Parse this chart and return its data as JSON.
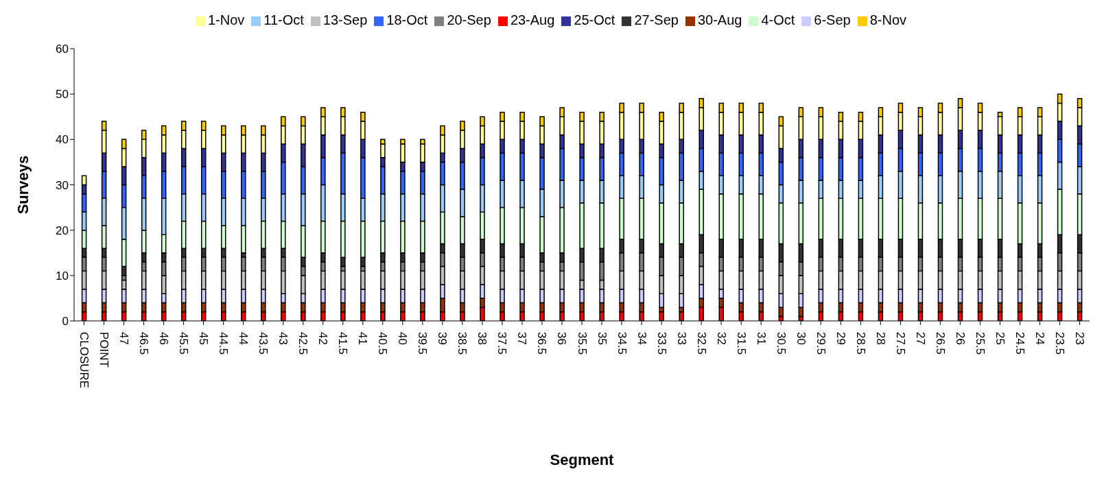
{
  "chart_data": {
    "type": "bar",
    "stacked": true,
    "xlabel": "Segment",
    "ylabel": "Surveys",
    "ylim": [
      0,
      60
    ],
    "yticks": [
      0,
      10,
      20,
      30,
      40,
      50,
      60
    ],
    "grid": false,
    "legend": "top",
    "categories": [
      "CLOSURE",
      "POINT",
      "47",
      "46.5",
      "46",
      "45.5",
      "45",
      "44.5",
      "44",
      "43.5",
      "43",
      "42.5",
      "42",
      "41.5",
      "41",
      "40.5",
      "40",
      "39.5",
      "39",
      "38.5",
      "38",
      "37.5",
      "37",
      "36.5",
      "36",
      "35.5",
      "35",
      "34.5",
      "34",
      "33.5",
      "33",
      "32.5",
      "32",
      "31.5",
      "31",
      "30.5",
      "30",
      "29.5",
      "29",
      "28.5",
      "28",
      "27.5",
      "27",
      "26.5",
      "26",
      "25.5",
      "25",
      "24.5",
      "24",
      "23.5",
      "23"
    ],
    "series": [
      {
        "name": "23-Aug",
        "color": "#ff0000",
        "values": [
          2,
          2,
          2,
          2,
          2,
          2,
          2,
          2,
          2,
          2,
          2,
          2,
          2,
          2,
          2,
          2,
          2,
          2,
          2,
          2,
          3,
          2,
          2,
          2,
          2,
          2,
          2,
          2,
          2,
          2,
          2,
          3,
          3,
          2,
          2,
          1,
          1,
          2,
          2,
          2,
          2,
          2,
          2,
          2,
          2,
          2,
          2,
          2,
          2,
          2,
          2
        ]
      },
      {
        "name": "30-Aug",
        "color": "#993300",
        "values": [
          2,
          2,
          2,
          2,
          2,
          2,
          2,
          2,
          2,
          2,
          2,
          2,
          2,
          2,
          2,
          2,
          2,
          2,
          3,
          2,
          2,
          2,
          2,
          2,
          2,
          2,
          2,
          2,
          2,
          1,
          1,
          2,
          2,
          2,
          2,
          2,
          2,
          2,
          2,
          2,
          2,
          2,
          2,
          2,
          2,
          2,
          2,
          2,
          2,
          2,
          2
        ]
      },
      {
        "name": "6-Sep",
        "color": "#ccccff",
        "values": [
          3,
          3,
          3,
          3,
          2,
          3,
          3,
          3,
          3,
          3,
          2,
          2,
          3,
          3,
          3,
          3,
          3,
          3,
          3,
          3,
          3,
          3,
          3,
          3,
          3,
          3,
          3,
          3,
          3,
          3,
          3,
          3,
          2,
          3,
          3,
          3,
          3,
          3,
          3,
          3,
          3,
          3,
          3,
          3,
          3,
          3,
          3,
          3,
          3,
          3,
          3
        ]
      },
      {
        "name": "13-Sep",
        "color": "#c0c0c0",
        "values": [
          4,
          4,
          2,
          4,
          4,
          4,
          4,
          4,
          4,
          4,
          5,
          4,
          4,
          4,
          4,
          4,
          4,
          4,
          4,
          4,
          4,
          4,
          4,
          4,
          4,
          2,
          2,
          4,
          4,
          4,
          4,
          4,
          4,
          4,
          4,
          4,
          4,
          4,
          4,
          4,
          4,
          4,
          4,
          4,
          4,
          4,
          4,
          4,
          4,
          4,
          4
        ]
      },
      {
        "name": "20-Sep",
        "color": "#808080",
        "values": [
          3,
          3,
          1,
          2,
          3,
          3,
          3,
          3,
          3,
          3,
          3,
          2,
          2,
          1,
          1,
          2,
          2,
          2,
          3,
          3,
          3,
          3,
          3,
          2,
          2,
          4,
          4,
          4,
          4,
          4,
          4,
          3,
          3,
          3,
          3,
          3,
          3,
          3,
          3,
          3,
          3,
          3,
          3,
          3,
          3,
          3,
          3,
          3,
          3,
          4,
          4
        ]
      },
      {
        "name": "27-Sep",
        "color": "#333333",
        "values": [
          2,
          2,
          2,
          2,
          2,
          2,
          2,
          2,
          1,
          2,
          2,
          2,
          2,
          2,
          2,
          2,
          2,
          2,
          2,
          3,
          3,
          3,
          3,
          2,
          2,
          3,
          3,
          3,
          3,
          3,
          3,
          4,
          4,
          4,
          4,
          4,
          4,
          4,
          4,
          4,
          4,
          4,
          4,
          4,
          4,
          4,
          4,
          3,
          3,
          4,
          4
        ]
      },
      {
        "name": "4-Oct",
        "color": "#ccffcc",
        "values": [
          4,
          5,
          6,
          5,
          4,
          6,
          6,
          5,
          6,
          6,
          6,
          7,
          7,
          8,
          8,
          7,
          7,
          7,
          7,
          6,
          6,
          8,
          8,
          8,
          10,
          10,
          10,
          9,
          9,
          9,
          9,
          10,
          10,
          10,
          10,
          9,
          9,
          9,
          9,
          9,
          9,
          9,
          8,
          8,
          9,
          9,
          9,
          9,
          9,
          10,
          9
        ]
      },
      {
        "name": "11-Oct",
        "color": "#99ccff",
        "values": [
          4,
          6,
          7,
          7,
          8,
          6,
          6,
          6,
          6,
          5,
          6,
          7,
          8,
          6,
          5,
          6,
          6,
          6,
          6,
          6,
          6,
          6,
          6,
          6,
          6,
          5,
          5,
          5,
          5,
          4,
          5,
          4,
          4,
          4,
          4,
          4,
          5,
          4,
          4,
          4,
          5,
          6,
          6,
          6,
          6,
          6,
          6,
          6,
          6,
          6,
          6
        ]
      },
      {
        "name": "18-Oct",
        "color": "#3366ff",
        "values": [
          4,
          6,
          5,
          5,
          6,
          6,
          6,
          6,
          6,
          6,
          7,
          6,
          6,
          9,
          9,
          6,
          5,
          5,
          5,
          6,
          6,
          6,
          6,
          7,
          7,
          5,
          5,
          5,
          5,
          6,
          6,
          5,
          5,
          5,
          5,
          5,
          5,
          5,
          5,
          5,
          5,
          5,
          5,
          5,
          5,
          5,
          4,
          5,
          5,
          5,
          5
        ]
      },
      {
        "name": "25-Oct",
        "color": "#333399",
        "values": [
          2,
          4,
          4,
          4,
          4,
          4,
          4,
          4,
          4,
          4,
          4,
          5,
          5,
          4,
          4,
          2,
          2,
          2,
          2,
          3,
          3,
          3,
          3,
          3,
          3,
          3,
          3,
          3,
          3,
          3,
          3,
          4,
          4,
          4,
          4,
          3,
          4,
          4,
          4,
          4,
          4,
          4,
          4,
          4,
          4,
          4,
          4,
          4,
          4,
          4,
          4
        ]
      },
      {
        "name": "1-Nov",
        "color": "#ffff99",
        "values": [
          2,
          5,
          4,
          4,
          4,
          4,
          4,
          4,
          4,
          4,
          4,
          4,
          4,
          4,
          4,
          3,
          4,
          4,
          4,
          4,
          4,
          4,
          4,
          4,
          4,
          5,
          5,
          6,
          6,
          5,
          6,
          5,
          5,
          5,
          5,
          5,
          5,
          5,
          4,
          4,
          4,
          4,
          4,
          5,
          5,
          4,
          4,
          4,
          4,
          4,
          4
        ]
      },
      {
        "name": "8-Nov",
        "color": "#ffcc00",
        "values": [
          0,
          2,
          2,
          2,
          2,
          2,
          2,
          2,
          2,
          2,
          2,
          2,
          2,
          2,
          2,
          1,
          1,
          1,
          2,
          2,
          2,
          2,
          2,
          2,
          2,
          2,
          2,
          2,
          2,
          2,
          2,
          2,
          2,
          2,
          2,
          2,
          2,
          2,
          2,
          2,
          2,
          2,
          2,
          2,
          2,
          2,
          1,
          2,
          2,
          2,
          2
        ]
      }
    ]
  }
}
